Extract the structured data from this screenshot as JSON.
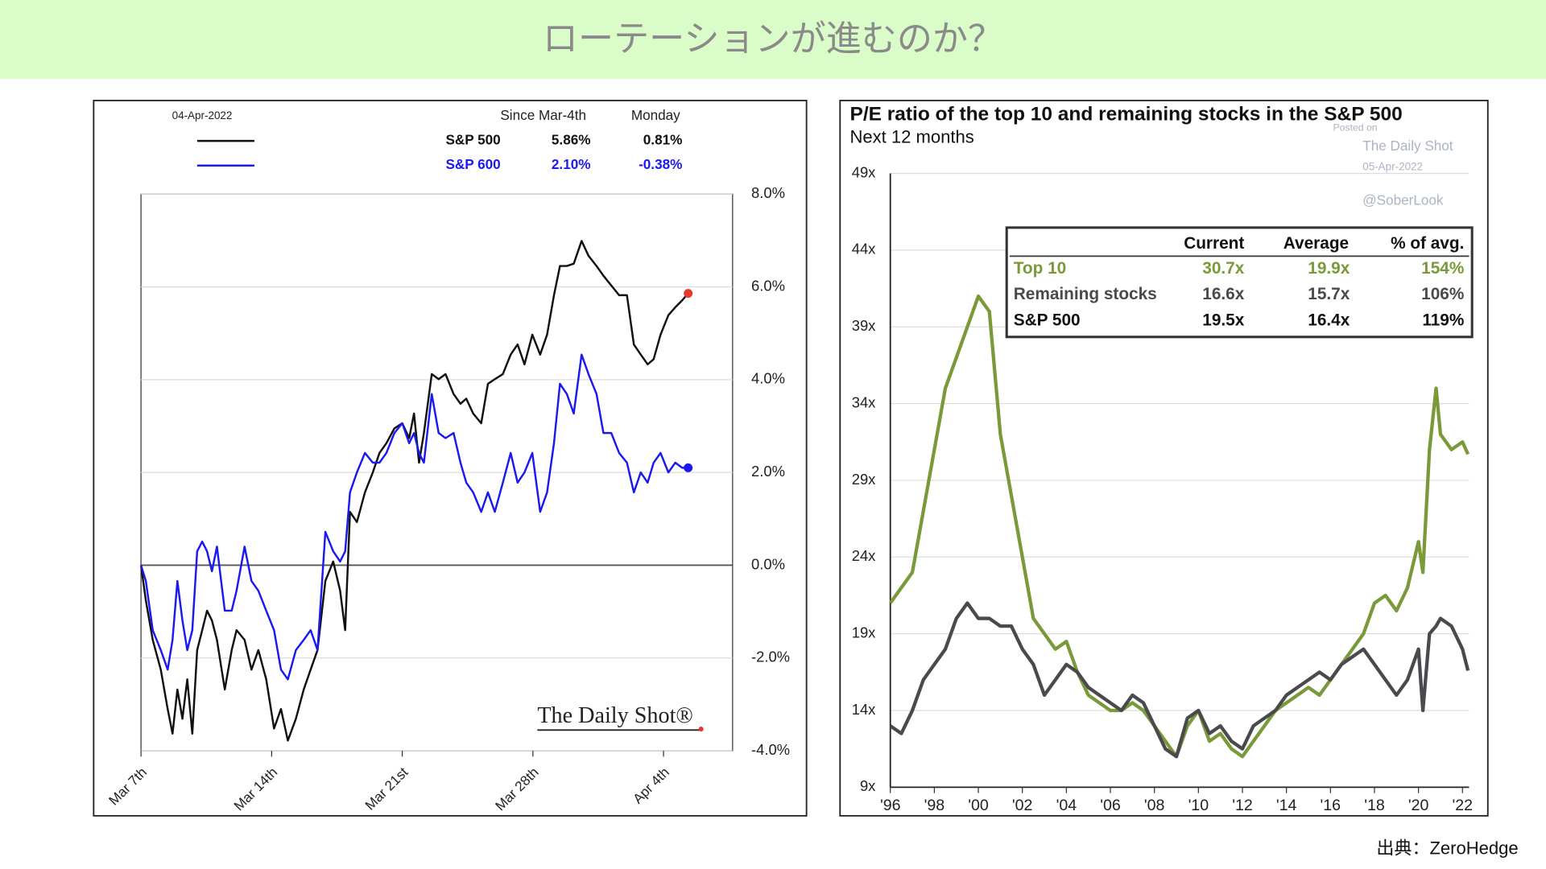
{
  "title": "ローテーションが進むのか？",
  "source": "出典：ZeroHedge",
  "chart_data": [
    {
      "type": "line",
      "legend": {
        "date": "04-Apr-2022",
        "columns": [
          "Since Mar-4th",
          "Monday"
        ]
      },
      "brand": "The Daily Shot®",
      "x": [
        0,
        0.26,
        0.63,
        1.06,
        1.43,
        1.69,
        1.95,
        2.22,
        2.48,
        2.75,
        3.01,
        3.28,
        3.54,
        3.8,
        4.07,
        4.49,
        4.86,
        5.12,
        5.55,
        5.92,
        6.29,
        6.71,
        7.13,
        7.5,
        7.87,
        8.3,
        8.72,
        9.09,
        9.46,
        9.88,
        10.3,
        10.67,
        10.94,
        11.2,
        11.57,
        12,
        12.42,
        12.78,
        13.15,
        13.58,
        14,
        14.37,
        14.63,
        14.9,
        15.16,
        15.58,
        15.95,
        16.32,
        16.75,
        17.12,
        17.43,
        17.8,
        18.23,
        18.59,
        18.96,
        19.39,
        19.81,
        20.18,
        20.55,
        20.97,
        21.39,
        21.76,
        22.13,
        22.45,
        22.82,
        23.19,
        23.61,
        23.98,
        24.41,
        24.78,
        25.2,
        25.62,
        26.04,
        26.41,
        26.78,
        27.15,
        27.47,
        27.84,
        28.26,
        28.63,
        29,
        29.32
      ],
      "series": [
        {
          "name": "S&P 500",
          "color": "#111111",
          "marker_color": "#e8392f",
          "stats": [
            "5.86%",
            "0.81%"
          ],
          "values": [
            0,
            -0.76,
            -1.61,
            -2.25,
            -3.1,
            -3.63,
            -2.68,
            -3.31,
            -2.46,
            -3.63,
            -1.83,
            -1.4,
            -0.98,
            -1.19,
            -1.61,
            -2.68,
            -1.83,
            -1.4,
            -1.61,
            -2.25,
            -1.83,
            -2.46,
            -3.52,
            -3.1,
            -3.78,
            -3.31,
            -2.68,
            -2.25,
            -1.83,
            -0.34,
            0.08,
            -0.55,
            -1.4,
            1.15,
            0.93,
            1.57,
            2,
            2.42,
            2.63,
            2.95,
            3.06,
            2.74,
            3.27,
            2.21,
            2.85,
            4.12,
            4.01,
            4.12,
            3.69,
            3.48,
            3.59,
            3.27,
            3.06,
            3.91,
            4.01,
            4.12,
            4.54,
            4.76,
            4.33,
            4.97,
            4.54,
            4.97,
            5.82,
            6.45,
            6.45,
            6.5,
            6.99,
            6.67,
            6.45,
            6.24,
            6.03,
            5.82,
            5.82,
            4.76,
            4.54,
            4.33,
            4.44,
            4.97,
            5.39,
            5.56,
            5.71,
            5.86
          ]
        },
        {
          "name": "S&P 600",
          "color": "#1a1aee",
          "marker_color": "#1a1aee",
          "stats": [
            "2.10%",
            "-0.38%"
          ],
          "values": [
            0,
            -0.34,
            -1.4,
            -1.83,
            -2.25,
            -1.61,
            -0.34,
            -1.19,
            -1.83,
            -1.4,
            0.3,
            0.51,
            0.3,
            -0.13,
            0.4,
            -0.98,
            -0.98,
            -0.55,
            0.4,
            -0.34,
            -0.55,
            -0.98,
            -1.4,
            -2.25,
            -2.46,
            -1.83,
            -1.61,
            -1.4,
            -1.83,
            0.72,
            0.3,
            0.08,
            0.3,
            1.57,
            2,
            2.42,
            2.21,
            2.21,
            2.42,
            2.85,
            3.06,
            2.63,
            2.85,
            2.42,
            2.21,
            3.69,
            2.85,
            2.74,
            2.85,
            2.21,
            1.78,
            1.57,
            1.15,
            1.57,
            1.15,
            1.78,
            2.42,
            1.78,
            2,
            2.42,
            1.15,
            1.57,
            2.63,
            3.91,
            3.69,
            3.27,
            4.54,
            4.12,
            3.69,
            2.85,
            2.85,
            2.42,
            2.21,
            1.57,
            2,
            1.78,
            2.21,
            2.42,
            2,
            2.21,
            2.1,
            2.1
          ]
        }
      ],
      "xlim": [
        0,
        31.7
      ],
      "xticks": [
        {
          "value": 0,
          "label": "Mar 7th"
        },
        {
          "value": 7,
          "label": "Mar 14th"
        },
        {
          "value": 14,
          "label": "Mar 21st"
        },
        {
          "value": 21,
          "label": "Mar 28th"
        },
        {
          "value": 28,
          "label": "Apr 4th"
        }
      ],
      "ylim": [
        -4,
        8
      ],
      "yticks": [
        {
          "value": -4,
          "label": "-4.0%"
        },
        {
          "value": -2,
          "label": "-2.0%"
        },
        {
          "value": 0,
          "label": "0.0%"
        },
        {
          "value": 2,
          "label": "2.0%"
        },
        {
          "value": 4,
          "label": "4.0%"
        },
        {
          "value": 6,
          "label": "6.0%"
        },
        {
          "value": 8,
          "label": "8.0%"
        }
      ],
      "y_axis_side": "right",
      "grid": true,
      "zero_line": true
    },
    {
      "type": "line",
      "title": "P/E ratio of the top 10 and remaining stocks in the S&P 500",
      "subtitle": "Next 12 months",
      "watermark": [
        "Posted on",
        "The Daily Shot",
        "05-Apr-2022",
        "@SoberLook"
      ],
      "x": [
        1996,
        1996.5,
        1997,
        1997.5,
        1998,
        1998.5,
        1999,
        1999.5,
        2000,
        2000.5,
        2001,
        2001.5,
        2002,
        2002.5,
        2003,
        2003.5,
        2004,
        2004.5,
        2005,
        2005.5,
        2006,
        2006.5,
        2007,
        2007.5,
        2008,
        2008.5,
        2009,
        2009.5,
        2010,
        2010.5,
        2011,
        2011.5,
        2012,
        2012.5,
        2013,
        2013.5,
        2014,
        2014.5,
        2015,
        2015.5,
        2016,
        2016.5,
        2017,
        2017.5,
        2018,
        2018.5,
        2019,
        2019.5,
        2020,
        2020.2,
        2020.5,
        2020.8,
        2021,
        2021.5,
        2022,
        2022.25
      ],
      "series": [
        {
          "name": "Top 10",
          "color": "#7a9a3a",
          "values": [
            21,
            22,
            23,
            27,
            31,
            35,
            37,
            39,
            41,
            40,
            32,
            28,
            24,
            20,
            19,
            18,
            18.5,
            16.5,
            15,
            14.5,
            14,
            14,
            14.5,
            14,
            13,
            12,
            11,
            13,
            14,
            12,
            12.5,
            11.5,
            11,
            12,
            13,
            14,
            14.5,
            15,
            15.5,
            15,
            16,
            17,
            18,
            19,
            21,
            21.5,
            20.5,
            22,
            25,
            23,
            31,
            35,
            32,
            31,
            31.5,
            30.7
          ]
        },
        {
          "name": "Remaining stocks",
          "color": "#4a4a4e",
          "values": [
            13,
            12.5,
            14,
            16,
            17,
            18,
            20,
            21,
            20,
            20,
            19.5,
            19.5,
            18,
            17,
            15,
            16,
            17,
            16.5,
            15.5,
            15,
            14.5,
            14,
            15,
            14.5,
            13,
            11.5,
            11,
            13.5,
            14,
            12.5,
            13,
            12,
            11.5,
            13,
            13.5,
            14,
            15,
            15.5,
            16,
            16.5,
            16,
            17,
            17.5,
            18,
            17,
            16,
            15,
            16,
            18,
            14,
            19,
            19.5,
            20,
            19.5,
            18,
            16.6
          ]
        }
      ],
      "table": {
        "columns": [
          "Current",
          "Average",
          "% of avg."
        ],
        "rows": [
          {
            "label": "Top 10",
            "cells": [
              "30.7x",
              "19.9x",
              "154%"
            ]
          },
          {
            "label": "Remaining stocks",
            "cells": [
              "16.6x",
              "15.7x",
              "106%"
            ]
          },
          {
            "label": "S&P 500",
            "cells": [
              "19.5x",
              "16.4x",
              "119%"
            ]
          }
        ]
      },
      "xlim": [
        1996,
        2022.3
      ],
      "xticks": [
        {
          "value": 1996,
          "label": "'96"
        },
        {
          "value": 1998,
          "label": "'98"
        },
        {
          "value": 2000,
          "label": "'00"
        },
        {
          "value": 2002,
          "label": "'02"
        },
        {
          "value": 2004,
          "label": "'04"
        },
        {
          "value": 2006,
          "label": "'06"
        },
        {
          "value": 2008,
          "label": "'08"
        },
        {
          "value": 2010,
          "label": "'10"
        },
        {
          "value": 2012,
          "label": "'12"
        },
        {
          "value": 2014,
          "label": "'14"
        },
        {
          "value": 2016,
          "label": "'16"
        },
        {
          "value": 2018,
          "label": "'18"
        },
        {
          "value": 2020,
          "label": "'20"
        },
        {
          "value": 2022,
          "label": "'22"
        }
      ],
      "ylim": [
        9,
        49
      ],
      "yticks": [
        {
          "value": 9,
          "label": "9x"
        },
        {
          "value": 14,
          "label": "14x"
        },
        {
          "value": 19,
          "label": "19x"
        },
        {
          "value": 24,
          "label": "24x"
        },
        {
          "value": 29,
          "label": "29x"
        },
        {
          "value": 34,
          "label": "34x"
        },
        {
          "value": 39,
          "label": "39x"
        },
        {
          "value": 44,
          "label": "44x"
        },
        {
          "value": 49,
          "label": "49x"
        }
      ],
      "y_axis_side": "left",
      "grid": true,
      "zero_line": false
    }
  ]
}
